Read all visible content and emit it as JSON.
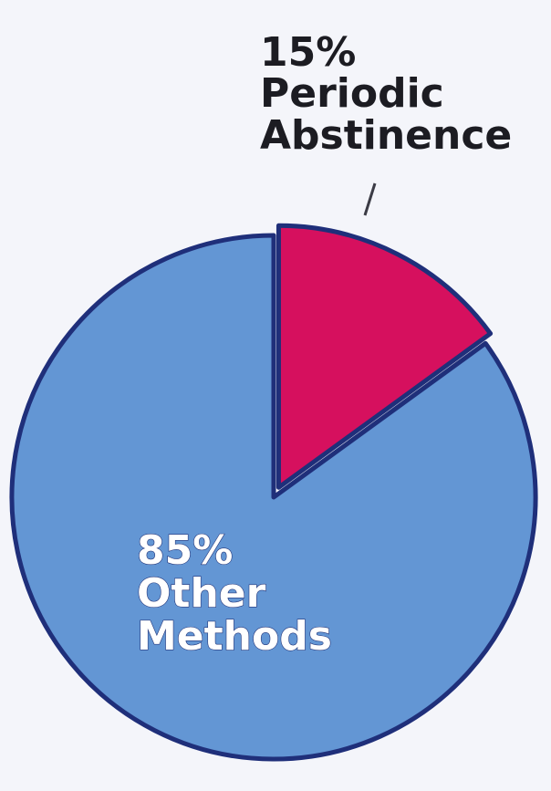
{
  "colors": {
    "background": "#f4f5fa",
    "outline": "#1f2f7a",
    "leader_line": "#3b3b45"
  },
  "chart_data": {
    "type": "pie",
    "title": "",
    "slices": [
      {
        "name": "Periodic Abstinence",
        "value": 15,
        "label_lines": [
          "15%",
          "Periodic",
          "Abstinence"
        ],
        "color": "#d6105e"
      },
      {
        "name": "Other Methods",
        "value": 85,
        "label_lines": [
          "85%",
          "Other",
          "Methods"
        ],
        "color": "#6396d4"
      }
    ],
    "legend": "none",
    "grid": false
  }
}
